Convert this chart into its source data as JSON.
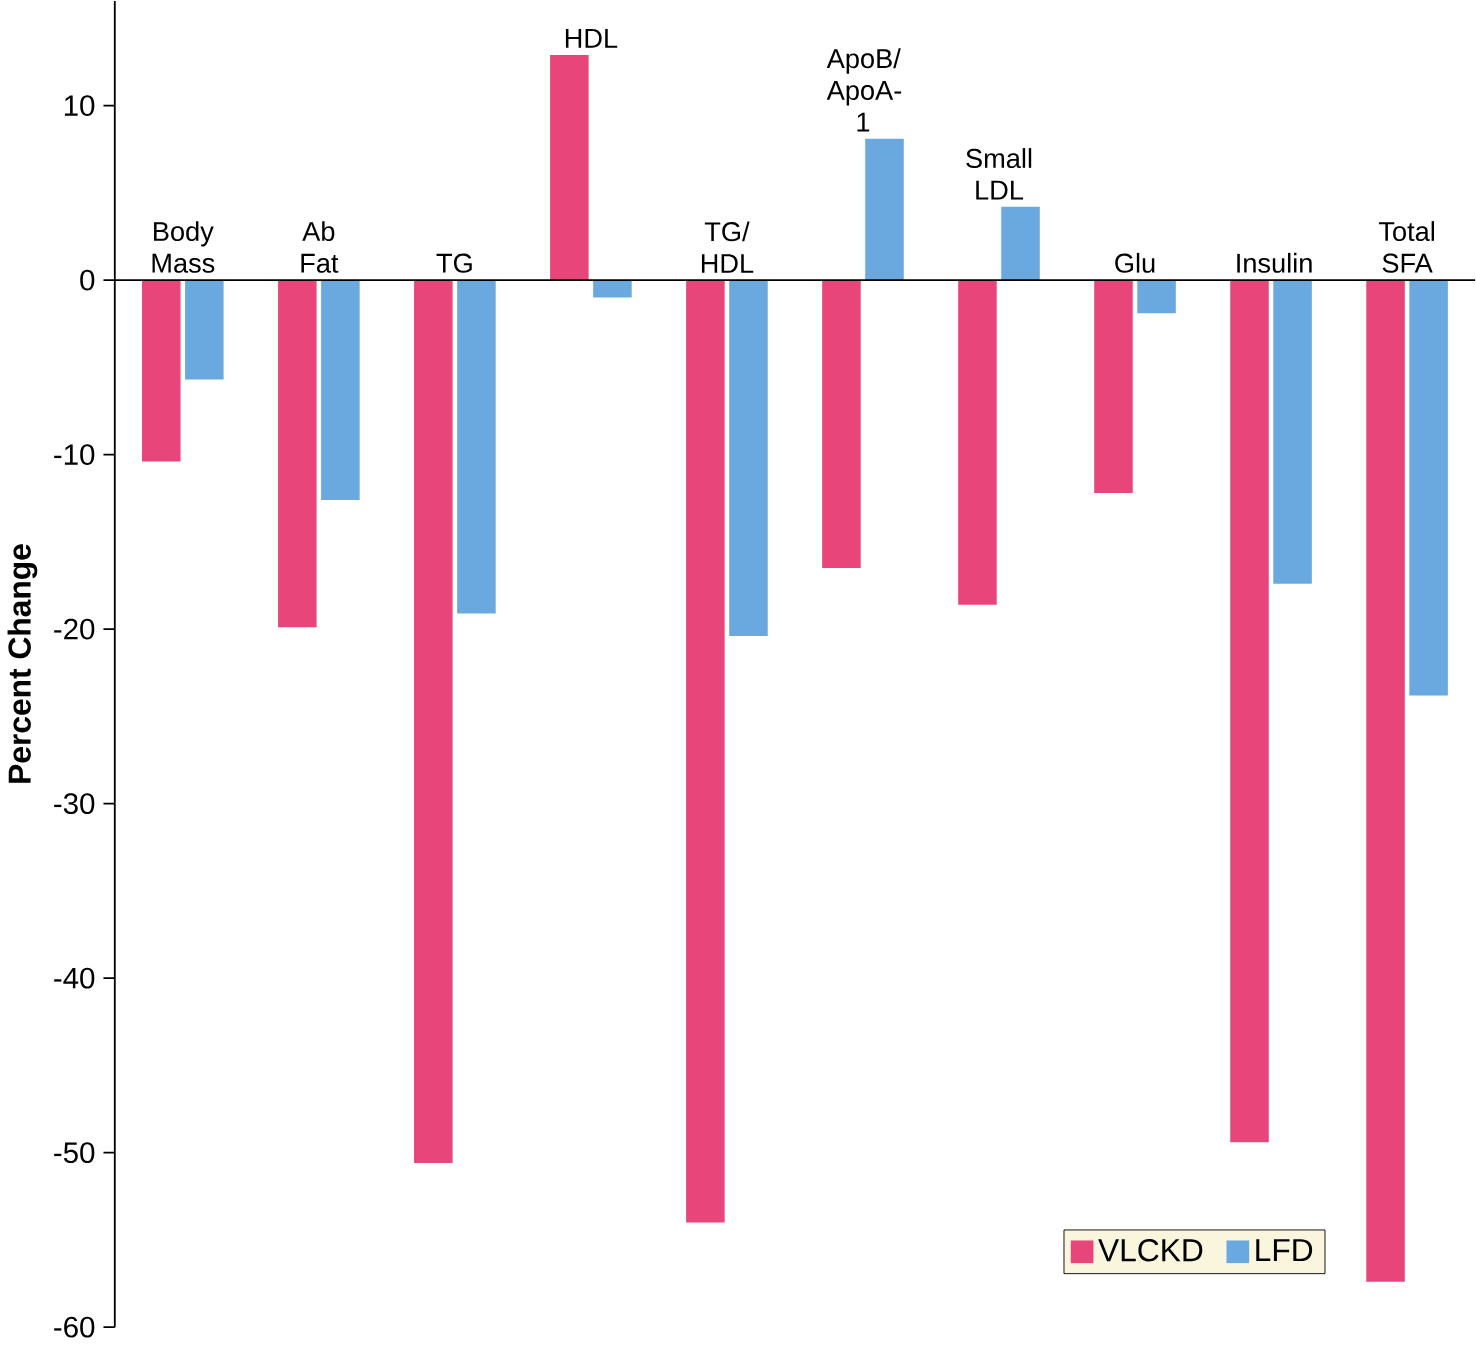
{
  "chart_data": {
    "type": "bar",
    "ylabel": "Percent Change",
    "categories": [
      "Body Mass",
      "Ab Fat",
      "TG",
      "HDL",
      "TG/ HDL",
      "ApoB/ ApoA-1",
      "Small LDL",
      "Glu",
      "Insulin",
      "Total SFA"
    ],
    "series": [
      {
        "name": "VLCKD",
        "color": "#e8457a",
        "values": [
          -10.4,
          -19.9,
          -50.6,
          12.9,
          -54,
          -16.5,
          -18.6,
          -12.2,
          -49.4,
          -57.4
        ]
      },
      {
        "name": "LFD",
        "color": "#6aa8e0",
        "values": [
          -5.7,
          -12.6,
          -19.1,
          -1.0,
          -20.4,
          8.1,
          4.2,
          -1.9,
          -17.4,
          -23.8
        ]
      }
    ],
    "ylim": [
      -60,
      16
    ],
    "yticks": [
      -60,
      -50,
      -40,
      -30,
      -20,
      -10,
      0,
      10
    ],
    "legend": "bottom right",
    "ref_lines": [
      {
        "axis": "y",
        "value": 0
      }
    ]
  }
}
